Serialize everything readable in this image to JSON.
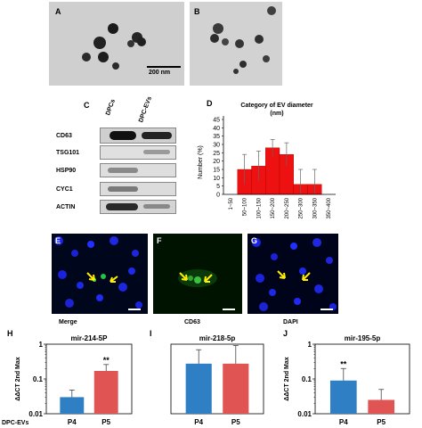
{
  "figure": {
    "panel_letters": {
      "a": "A",
      "b": "B",
      "c": "C",
      "d": "D",
      "e": "E",
      "f": "F",
      "g": "G",
      "h": "H",
      "i": "I",
      "j": "J"
    },
    "tem": {
      "scale_bar": "200 nm"
    },
    "western_blot": {
      "columns": [
        "DPCs",
        "DPC-EVs"
      ],
      "rows": [
        "CD63",
        "TSG101",
        "HSP90",
        "CYC1",
        "ACTIN"
      ]
    },
    "fluorescence": {
      "captions": [
        "Merge",
        "CD63",
        "DAPI"
      ]
    },
    "colors": {
      "p4": "#2e7fc4",
      "p5": "#e05454",
      "hist": "#ee1111"
    }
  },
  "chart_data": [
    {
      "type": "bar",
      "title": "Category of EV diameter\n(nm)",
      "ylabel": "Number (%)",
      "categories": [
        "1~50",
        "50~100",
        "100~150",
        "150~200",
        "200~250",
        "250~300",
        "300~350",
        "350~400"
      ],
      "values": [
        0,
        15,
        17,
        28,
        24,
        6,
        6,
        0
      ],
      "errors": [
        0,
        9,
        9,
        5,
        7,
        9,
        9,
        0
      ],
      "ylim": [
        0,
        45
      ],
      "yticks": [
        "0",
        "5",
        "10",
        "15",
        "20",
        "25",
        "30",
        "35",
        "40",
        "45"
      ]
    },
    {
      "type": "bar",
      "title": "mir-214-5P",
      "ylabel": "ΔΔCT 2nd Max",
      "categories": [
        "P4",
        "P5"
      ],
      "values": [
        0.03,
        0.17
      ],
      "err_hi": [
        0.048,
        0.26
      ],
      "yscale": "log",
      "ylim": [
        0.01,
        1
      ],
      "yticks": [
        "0.01",
        "0.1",
        "1"
      ],
      "annotations": [
        "",
        "**"
      ],
      "row_label": "DPC-EVs"
    },
    {
      "type": "bar",
      "title": "mir-218-5p",
      "ylabel": "",
      "categories": [
        "P4",
        "P5"
      ],
      "values": [
        0.72,
        0.72
      ],
      "err_hi": [
        0.92,
        0.98
      ],
      "ylim": [
        0,
        1
      ]
    },
    {
      "type": "bar",
      "title": "mir-195-5p",
      "ylabel": "ΔΔCT 2nd Max",
      "categories": [
        "P4",
        "P5"
      ],
      "values": [
        0.09,
        0.025
      ],
      "err_hi": [
        0.2,
        0.05
      ],
      "yscale": "log",
      "ylim": [
        0.01,
        1
      ],
      "yticks": [
        "0.01",
        "0.1",
        "1"
      ],
      "annotations": [
        "**",
        ""
      ]
    }
  ]
}
